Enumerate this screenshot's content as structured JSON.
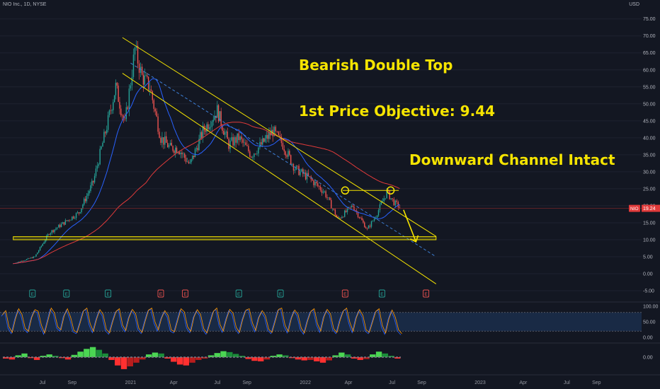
{
  "header": {
    "symbol": "NIO Inc., 1D, NYSE",
    "currency": "USD"
  },
  "annotations": {
    "pattern": "Bearish Double Top",
    "objective": "1st Price Objective: 9.44",
    "channel": "Downward Channel Intact"
  },
  "colors": {
    "background": "#131722",
    "up": "#26a69a",
    "down": "#ef5350",
    "sma_short": "#2962ff",
    "sma_long": "#e03a3a",
    "annotation": "#f5e400",
    "oscillator": "#ff9800",
    "oscillator_band": "#1f3b63"
  },
  "chart_data": [
    {
      "type": "candlestick",
      "title": "NIO Inc., 1D, NYSE",
      "ylim": [
        -5,
        75
      ],
      "y_ticks": [
        "75.00",
        "70.00",
        "65.00",
        "60.00",
        "55.00",
        "50.00",
        "45.00",
        "40.00",
        "35.00",
        "30.00",
        "25.00",
        "20.00",
        "15.00",
        "10.00",
        "5.00",
        "0.00",
        "-5.00"
      ],
      "x_ticks": [
        "Jul",
        "Sep",
        "2021",
        "Apr",
        "Jul",
        "Sep",
        "2022",
        "Apr",
        "Jul",
        "Sep",
        "2023",
        "Apr",
        "Jul",
        "Sep"
      ],
      "last_price": {
        "label": "NIO",
        "value": "19.24"
      },
      "price_path": [
        {
          "date": "2020-05-01",
          "close": 3
        },
        {
          "date": "2020-06-15",
          "close": 5
        },
        {
          "date": "2020-07-15",
          "close": 12
        },
        {
          "date": "2020-08-15",
          "close": 15
        },
        {
          "date": "2020-09-15",
          "close": 18
        },
        {
          "date": "2020-10-15",
          "close": 27
        },
        {
          "date": "2020-11-15",
          "close": 45
        },
        {
          "date": "2020-12-01",
          "close": 55
        },
        {
          "date": "2020-12-20",
          "close": 44
        },
        {
          "date": "2021-01-10",
          "close": 66
        },
        {
          "date": "2021-01-25",
          "close": 58
        },
        {
          "date": "2021-02-10",
          "close": 55
        },
        {
          "date": "2021-03-05",
          "close": 40
        },
        {
          "date": "2021-03-25",
          "close": 37
        },
        {
          "date": "2021-04-10",
          "close": 37
        },
        {
          "date": "2021-05-05",
          "close": 32
        },
        {
          "date": "2021-06-01",
          "close": 42
        },
        {
          "date": "2021-07-01",
          "close": 48
        },
        {
          "date": "2021-07-25",
          "close": 38
        },
        {
          "date": "2021-08-15",
          "close": 40
        },
        {
          "date": "2021-09-10",
          "close": 35
        },
        {
          "date": "2021-10-01",
          "close": 38
        },
        {
          "date": "2021-10-25",
          "close": 42
        },
        {
          "date": "2021-11-15",
          "close": 38
        },
        {
          "date": "2021-12-10",
          "close": 31
        },
        {
          "date": "2022-01-10",
          "close": 28
        },
        {
          "date": "2022-02-10",
          "close": 24
        },
        {
          "date": "2022-03-10",
          "close": 16
        },
        {
          "date": "2022-04-10",
          "close": 20
        },
        {
          "date": "2022-05-10",
          "close": 13
        },
        {
          "date": "2022-05-28",
          "close": 17
        },
        {
          "date": "2022-06-20",
          "close": 24
        },
        {
          "date": "2022-07-05",
          "close": 21
        },
        {
          "date": "2022-07-20",
          "close": 19.24
        }
      ],
      "overlays": [
        {
          "name": "",
          "kind": "moving average",
          "color": "#2962ff"
        },
        {
          "name": "",
          "kind": "moving average",
          "color": "#e03a3a"
        }
      ],
      "drawings": [
        {
          "kind": "channel upper line",
          "from": {
            "date": "2020-12-15",
            "price": 69.5
          },
          "to": {
            "date": "2022-10-01",
            "price": 11
          }
        },
        {
          "kind": "channel lower line",
          "from": {
            "date": "2020-12-15",
            "price": 59
          },
          "to": {
            "date": "2022-10-01",
            "price": -3
          }
        },
        {
          "kind": "channel midline (dashed)",
          "from": {
            "date": "2021-01-01",
            "price": 62
          },
          "to": {
            "date": "2022-10-01",
            "price": 5
          }
        },
        {
          "kind": "double top neckline",
          "from": {
            "date": "2022-03-20",
            "price": 24.5
          },
          "to": {
            "date": "2022-07-15",
            "price": 24.5
          }
        },
        {
          "kind": "double top peak",
          "date": "2022-03-25",
          "price": 24.5
        },
        {
          "kind": "double top peak",
          "date": "2022-06-28",
          "price": 24.5
        },
        {
          "kind": "support zone",
          "from_date": "2020-05-01",
          "to_date": "2022-10-01",
          "price_low": 10.0,
          "price_high": 10.9
        },
        {
          "kind": "arrow",
          "from": {
            "date": "2022-07-25",
            "price": 18.8
          },
          "to": {
            "date": "2022-08-20",
            "price": 9.4
          }
        }
      ],
      "earnings_markers": [
        {
          "date": "2020-06-10",
          "type": "E"
        },
        {
          "date": "2020-08-20",
          "type": "E"
        },
        {
          "date": "2020-11-15",
          "type": "E"
        },
        {
          "date": "2021-03-05",
          "type": "E"
        },
        {
          "date": "2021-04-25",
          "type": "E"
        },
        {
          "date": "2021-08-15",
          "type": "E"
        },
        {
          "date": "2021-11-10",
          "type": "E"
        },
        {
          "date": "2022-03-25",
          "type": "E"
        },
        {
          "date": "2022-06-10",
          "type": "E"
        },
        {
          "date": "2022-09-10",
          "type": "E"
        }
      ]
    },
    {
      "type": "line",
      "title": "",
      "ylim": [
        0,
        100
      ],
      "y_ticks": [
        "100.00",
        "50.00",
        "0.00"
      ],
      "band": [
        20,
        80
      ],
      "series": [
        {
          "values": [
            68,
            82,
            30,
            12,
            55,
            88,
            70,
            25,
            15,
            60,
            85,
            80,
            35,
            10,
            50,
            90,
            75,
            30,
            20,
            65,
            88,
            60,
            18,
            12,
            45,
            82,
            90,
            40,
            15,
            55,
            85,
            70,
            22,
            10,
            48,
            80,
            88,
            35,
            18,
            60,
            86,
            72,
            25,
            12,
            50,
            84,
            90,
            45,
            20,
            58,
            82,
            66,
            20,
            14,
            52,
            88,
            78,
            30,
            15,
            62,
            85,
            70,
            24,
            10,
            46,
            80,
            90,
            38,
            16,
            56,
            86,
            74,
            28,
            12,
            54,
            84,
            88,
            42,
            18,
            60,
            82,
            65,
            22,
            12,
            48,
            86,
            90,
            36,
            14,
            58,
            84,
            70,
            26,
            10,
            50,
            80,
            88,
            40,
            16,
            62,
            86,
            72,
            24,
            12,
            52,
            82,
            90,
            44,
            15,
            60,
            85,
            66,
            20,
            12,
            46,
            80,
            88,
            34,
            10,
            55,
            84,
            60,
            20,
            8
          ]
        }
      ]
    },
    {
      "type": "bar",
      "title": "",
      "y_ticks": [
        "0.00"
      ],
      "series": [
        {
          "values": [
            -0.3,
            -0.5,
            0.4,
            0.8,
            -0.2,
            -0.6,
            0.3,
            0.6,
            0.3,
            -0.2,
            -0.5,
            0.5,
            1.2,
            1.8,
            2.2,
            1.6,
            0.8,
            -0.6,
            -1.8,
            -2.6,
            -2.0,
            -1.2,
            -0.5,
            0.6,
            1.0,
            0.8,
            -0.3,
            -1.0,
            -1.6,
            -1.8,
            -1.2,
            -0.6,
            -0.3,
            0.4,
            0.9,
            1.3,
            1.1,
            0.7,
            0.3,
            -0.4,
            -0.8,
            -0.9,
            -0.5,
            0.3,
            0.6,
            0.4,
            -0.2,
            -0.5,
            -0.7,
            -0.6,
            -0.9,
            -1.2,
            -0.7,
            0.4,
            1.0,
            0.6,
            -0.3,
            -0.6,
            -0.4,
            0.6,
            1.2,
            0.8,
            0.3,
            -0.3
          ]
        }
      ]
    }
  ]
}
